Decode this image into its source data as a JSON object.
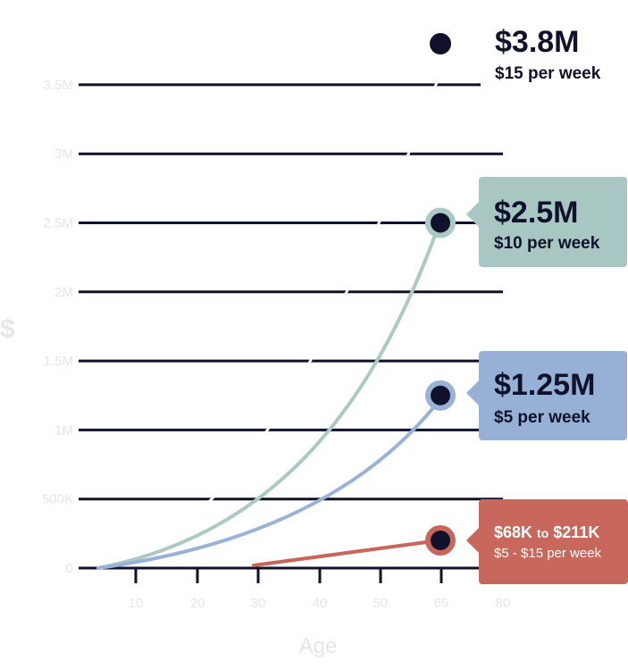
{
  "chart_data": {
    "type": "line",
    "title": "",
    "xlabel": "Age",
    "ylabel": "$",
    "x_ticks": [
      "10",
      "20",
      "30",
      "40",
      "50",
      "65",
      "80"
    ],
    "y_ticks": [
      "0",
      "500K",
      "1M",
      "1.5M",
      "2M",
      "2.5M",
      "3M",
      "3.5M"
    ],
    "ylim": [
      0,
      3.5
    ],
    "grid": true,
    "series": [
      {
        "name": "$15 per week",
        "end_label": "$3.8M",
        "end_value_m": 3.8,
        "color": "#10112a",
        "style": "dashed-white"
      },
      {
        "name": "$10 per week",
        "end_label": "$2.5M",
        "end_value_m": 2.5,
        "color": "#acc9c4",
        "card_color": "#a9c7c2"
      },
      {
        "name": "$5 per week",
        "end_label": "$1.25M",
        "end_value_m": 1.25,
        "color": "#9ab2d8",
        "card_color": "#97b0d6"
      },
      {
        "name": "$5 - $15 per week",
        "end_label": "$68K to $211K",
        "color": "#c9665a",
        "card_color": "#c8675b"
      }
    ]
  },
  "cards": {
    "c1": {
      "big": "$3.8M",
      "sub": "$15 per week"
    },
    "c2": {
      "big": "$2.5M",
      "sub": "$10 per week"
    },
    "c3": {
      "big": "$1.25M",
      "sub": "$5 per week"
    },
    "c4": {
      "big_a": "$68K",
      "big_to": "to",
      "big_b": "$211K",
      "sub": "$5 - $15 per week"
    }
  }
}
